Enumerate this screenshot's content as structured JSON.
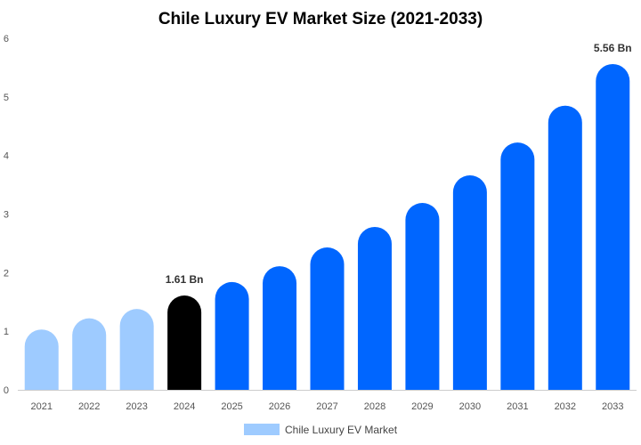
{
  "chart_data": {
    "type": "bar",
    "title": "Chile Luxury EV Market Size (2021-2033)",
    "xlabel": "",
    "ylabel": "",
    "ylim": [
      0,
      6
    ],
    "yticks": [
      "0",
      "1",
      "2",
      "3",
      "4",
      "5",
      "6"
    ],
    "grid": false,
    "legend": {
      "position": "bottom",
      "entries": [
        "Chile Luxury EV Market"
      ]
    },
    "categories": [
      "2021",
      "2022",
      "2023",
      "2024",
      "2025",
      "2026",
      "2027",
      "2028",
      "2029",
      "2030",
      "2031",
      "2032",
      "2033"
    ],
    "series": [
      {
        "name": "Chile Luxury EV Market",
        "values": [
          1.03,
          1.22,
          1.38,
          1.61,
          1.84,
          2.11,
          2.43,
          2.78,
          3.19,
          3.66,
          4.22,
          4.85,
          5.56
        ]
      }
    ],
    "data_labels": [
      {
        "category": "2024",
        "text": "1.61 Bn"
      },
      {
        "category": "2033",
        "text": "5.56 Bn"
      }
    ],
    "colors": {
      "historical": "#9ecbff",
      "current": "#000000",
      "forecast": "#0066ff",
      "legend": "#9ecbff"
    }
  }
}
